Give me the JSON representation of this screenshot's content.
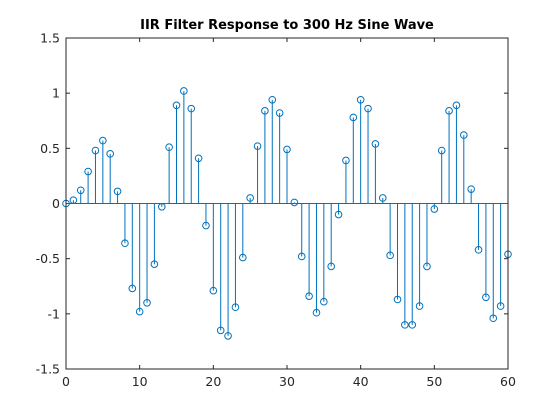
{
  "chart_data": {
    "type": "stem",
    "title": "IIR Filter Response to 300 Hz Sine Wave",
    "xlabel": "",
    "ylabel": "",
    "xlim": [
      0,
      60
    ],
    "ylim": [
      -1.5,
      1.5
    ],
    "xticks": [
      0,
      10,
      20,
      30,
      40,
      50,
      60
    ],
    "xtick_labels": [
      "0",
      "10",
      "20",
      "30",
      "40",
      "50",
      "60"
    ],
    "yticks": [
      -1.5,
      -1,
      -0.5,
      0,
      0.5,
      1,
      1.5
    ],
    "ytick_labels": [
      "-1.5",
      "-1",
      "-0.5",
      "0",
      "0.5",
      "1",
      "1.5"
    ],
    "grid": false,
    "color": "#0072bd",
    "marker": "circle",
    "x": [
      0,
      1,
      2,
      3,
      4,
      5,
      6,
      7,
      8,
      9,
      10,
      11,
      12,
      13,
      14,
      15,
      16,
      17,
      18,
      19,
      20,
      21,
      22,
      23,
      24,
      25,
      26,
      27,
      28,
      29,
      30,
      31,
      32,
      33,
      34,
      35,
      36,
      37,
      38,
      39,
      40,
      41,
      42,
      43,
      44,
      45,
      46,
      47,
      48,
      49,
      50,
      51,
      52,
      53,
      54,
      55,
      56,
      57,
      58,
      59,
      60
    ],
    "y": [
      0.0,
      0.03,
      0.12,
      0.29,
      0.48,
      0.57,
      0.45,
      0.11,
      -0.36,
      -0.77,
      -0.98,
      -0.9,
      -0.55,
      -0.03,
      0.51,
      0.89,
      1.02,
      0.86,
      0.41,
      -0.2,
      -0.79,
      -1.15,
      -1.2,
      -0.94,
      -0.49,
      0.05,
      0.52,
      0.84,
      0.94,
      0.82,
      0.49,
      0.01,
      -0.48,
      -0.84,
      -0.99,
      -0.89,
      -0.57,
      -0.1,
      0.39,
      0.78,
      0.94,
      0.86,
      0.54,
      0.05,
      -0.47,
      -0.87,
      -1.1,
      -1.1,
      -0.93,
      -0.57,
      -0.05,
      0.48,
      0.84,
      0.89,
      0.62,
      0.13,
      -0.42,
      -0.85,
      -1.04,
      -0.93,
      -0.46
    ]
  }
}
